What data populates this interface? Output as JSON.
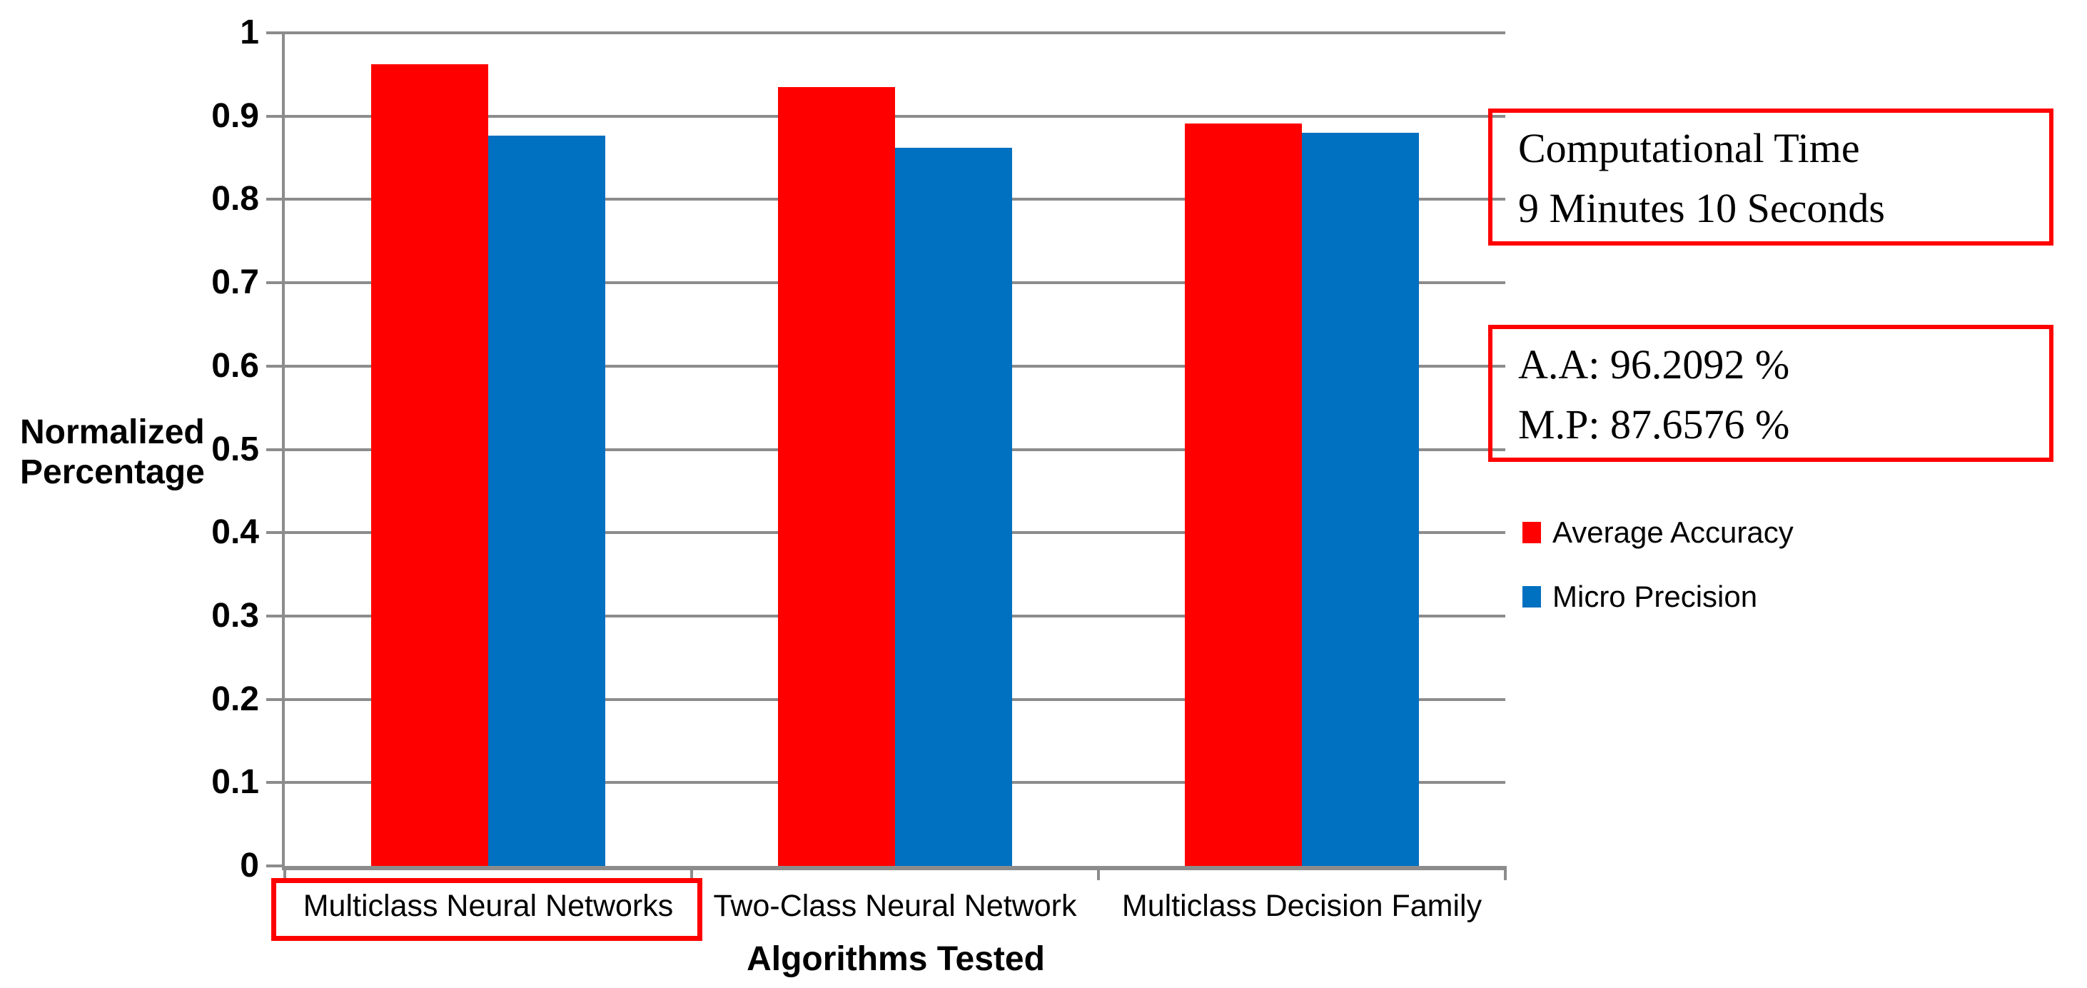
{
  "chart_data": {
    "type": "bar",
    "categories": [
      "Multiclass Neural Networks",
      "Two-Class Neural Network",
      "Multiclass Decision Family"
    ],
    "series": [
      {
        "name": "Average Accuracy",
        "color": "#FF0000",
        "values": [
          0.9621,
          0.935,
          0.891
        ]
      },
      {
        "name": "Micro Precision",
        "color": "#0070C0",
        "values": [
          0.8766,
          0.862,
          0.88
        ]
      }
    ],
    "title": "",
    "xlabel": "Algorithms Tested",
    "ylabel": "Normalized Percentage",
    "ylim": [
      0,
      1
    ],
    "yticks": [
      "1",
      "0.9",
      "0.8",
      "0.7",
      "0.6",
      "0.5",
      "0.4",
      "0.3",
      "0.2",
      "0.1",
      "0"
    ],
    "grid": true,
    "legend_position": "right",
    "highlighted_category_index": 0
  },
  "annotations": {
    "computational_time": {
      "lines": [
        "Computational Time",
        "9 Minutes 10 Seconds"
      ],
      "border_color": "#FF0000"
    },
    "metrics": {
      "lines": [
        "A.A: 96.2092 %",
        "M.P: 87.6576 %"
      ],
      "border_color": "#FF0000"
    }
  },
  "legend": {
    "items": [
      {
        "label": "Average Accuracy",
        "color": "#FF0000"
      },
      {
        "label": "Micro Precision",
        "color": "#0070C0"
      }
    ]
  },
  "colors": {
    "axis": "#8C8C8C",
    "highlight_border": "#FF0000",
    "series_red": "#FF0000",
    "series_blue": "#0070C0"
  }
}
